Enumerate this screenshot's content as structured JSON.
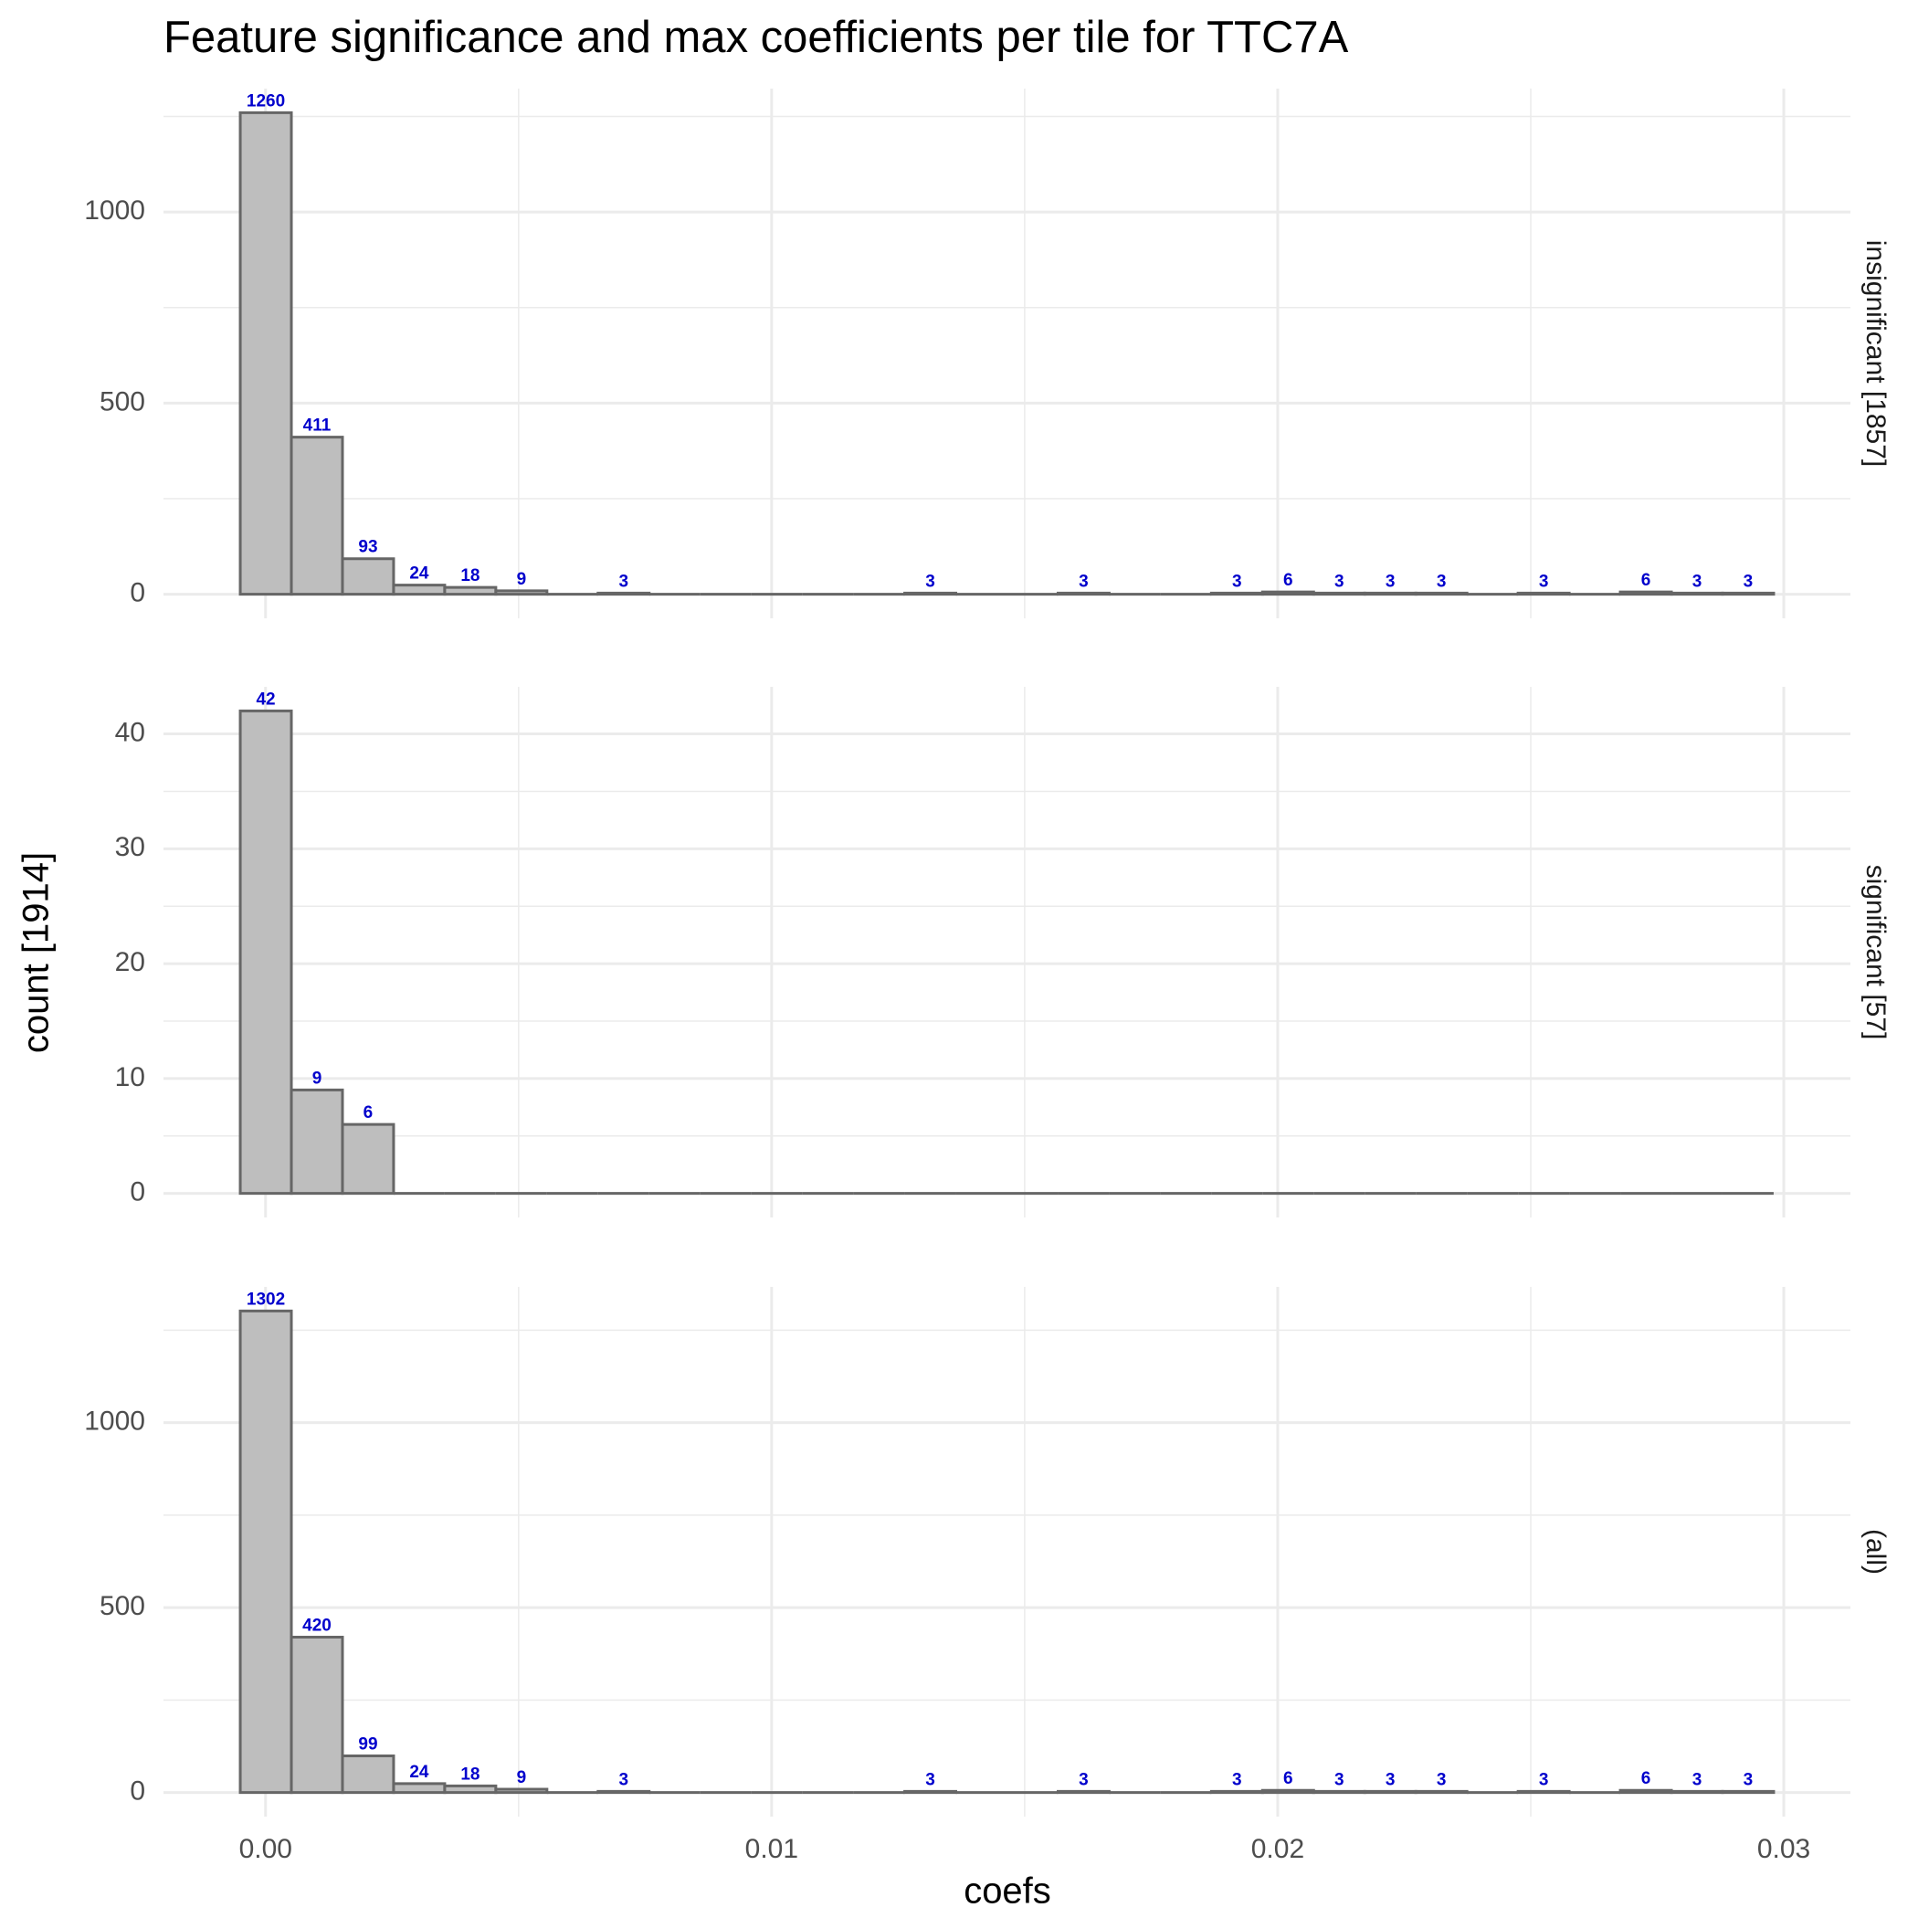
{
  "chart_data": {
    "type": "histogram",
    "title": "Feature significance and max coefficients per tile for TTC7A",
    "x_label": "coefs",
    "y_label": "count [1914]",
    "bar_color": "#bebebe",
    "bar_edge_color": "#666666",
    "label_color": "#0000cc",
    "grid": true,
    "bins": [
      -0.0005,
      0.00051,
      0.00152,
      0.00253,
      0.00354,
      0.00455,
      0.00556,
      0.00657,
      0.00758,
      0.00859,
      0.0096,
      0.01061,
      0.01162,
      0.01263,
      0.01364,
      0.01465,
      0.01566,
      0.01667,
      0.01768,
      0.01869,
      0.0197,
      0.02071,
      0.02172,
      0.02273,
      0.02374,
      0.02475,
      0.02576,
      0.02677,
      0.02778,
      0.02879,
      0.0298
    ],
    "xlim": [
      -0.002017,
      0.031317
    ],
    "xticks": [
      {
        "value": 0,
        "label": "0.00"
      },
      {
        "value": 0.01,
        "label": "0.01"
      },
      {
        "value": 0.02,
        "label": "0.02"
      },
      {
        "value": 0.03,
        "label": "0.03"
      }
    ],
    "xminor": [
      0.005,
      0.015,
      0.025
    ],
    "facets": [
      {
        "name": "insignificant [1857]",
        "values": [
          1260,
          411,
          93,
          24,
          18,
          9,
          0,
          3,
          0,
          0,
          0,
          0,
          0,
          3,
          0,
          0,
          3,
          0,
          0,
          3,
          6,
          3,
          3,
          3,
          0,
          3,
          0,
          6,
          3,
          3
        ],
        "ylim": [
          -63,
          1323
        ],
        "yticks": [
          0,
          500,
          1000
        ],
        "yminor": [
          250,
          750,
          1250
        ]
      },
      {
        "name": "significant [57]",
        "values": [
          42,
          9,
          6,
          0,
          0,
          0,
          0,
          0,
          0,
          0,
          0,
          0,
          0,
          0,
          0,
          0,
          0,
          0,
          0,
          0,
          0,
          0,
          0,
          0,
          0,
          0,
          0,
          0,
          0,
          0
        ],
        "ylim": [
          -2.1,
          44.1
        ],
        "yticks": [
          0,
          10,
          20,
          30,
          40
        ],
        "yminor": [
          5,
          15,
          25,
          35
        ]
      },
      {
        "name": "(all)",
        "values": [
          1302,
          420,
          99,
          24,
          18,
          9,
          0,
          3,
          0,
          0,
          0,
          0,
          0,
          3,
          0,
          0,
          3,
          0,
          0,
          3,
          6,
          3,
          3,
          3,
          0,
          3,
          0,
          6,
          3,
          3
        ],
        "ylim": [
          -65.1,
          1367.1
        ],
        "yticks": [
          0,
          500,
          1000
        ],
        "yminor": [
          250,
          750,
          1250
        ]
      }
    ]
  }
}
